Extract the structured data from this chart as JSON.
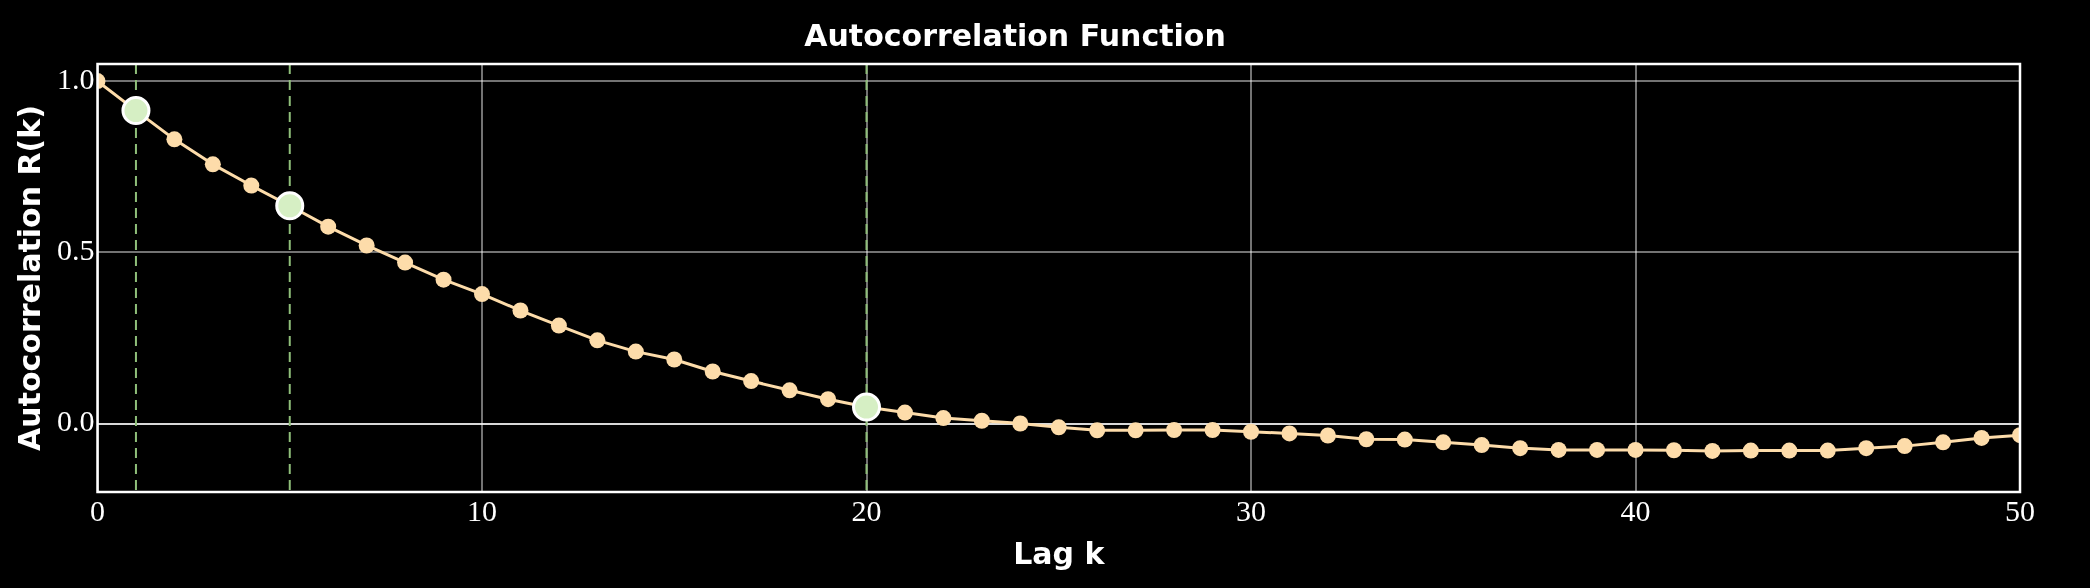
{
  "chart_data": {
    "type": "line",
    "title": "Autocorrelation Function",
    "xlabel": "Lag k",
    "ylabel": "Autocorrelation R(k)",
    "xlim": [
      0,
      50
    ],
    "xticks": [
      0,
      10,
      20,
      30,
      40,
      50
    ],
    "ylim": [
      -0.2,
      1.05
    ],
    "yticks": [
      {
        "value": 0,
        "label": "0.0"
      },
      {
        "value": 0.5,
        "label": "0.5"
      },
      {
        "value": 1,
        "label": "1.0"
      }
    ],
    "grid": true,
    "legend": false,
    "marker": "circle",
    "line_style": "solid",
    "series": [
      {
        "color": "#fddcaa",
        "x": [
          0,
          1,
          2,
          3,
          4,
          5,
          6,
          7,
          8,
          9,
          10,
          11,
          12,
          13,
          14,
          15,
          16,
          17,
          18,
          19,
          20,
          21,
          22,
          23,
          24,
          25,
          26,
          27,
          28,
          29,
          30,
          31,
          32,
          33,
          34,
          35,
          36,
          37,
          38,
          39,
          40,
          41,
          42,
          43,
          44,
          45,
          46,
          47,
          48,
          49,
          50
        ],
        "values": [
          1.0,
          0.914,
          0.83,
          0.757,
          0.695,
          0.636,
          0.575,
          0.52,
          0.47,
          0.42,
          0.378,
          0.33,
          0.286,
          0.243,
          0.21,
          0.187,
          0.152,
          0.124,
          0.097,
          0.071,
          0.048,
          0.032,
          0.016,
          0.008,
          0.0,
          -0.011,
          -0.02,
          -0.02,
          -0.019,
          -0.019,
          -0.024,
          -0.029,
          -0.035,
          -0.046,
          -0.047,
          -0.055,
          -0.063,
          -0.072,
          -0.077,
          -0.077,
          -0.077,
          -0.078,
          -0.08,
          -0.079,
          -0.079,
          -0.079,
          -0.072,
          -0.066,
          -0.055,
          -0.042,
          -0.034
        ]
      },
      {
        "type": "scatter",
        "color": "#d6efc4",
        "x": [
          1,
          5,
          20
        ],
        "values": [
          0.914,
          0.636,
          0.048
        ]
      }
    ],
    "ref_lines": [
      {
        "axis": "x",
        "value": 1,
        "color": "#8fbf7a",
        "line_style": "dashed"
      },
      {
        "axis": "x",
        "value": 5,
        "color": "#8fbf7a",
        "line_style": "dashed"
      },
      {
        "axis": "x",
        "value": 20,
        "color": "#8fbf7a",
        "line_style": "dashed"
      }
    ]
  }
}
